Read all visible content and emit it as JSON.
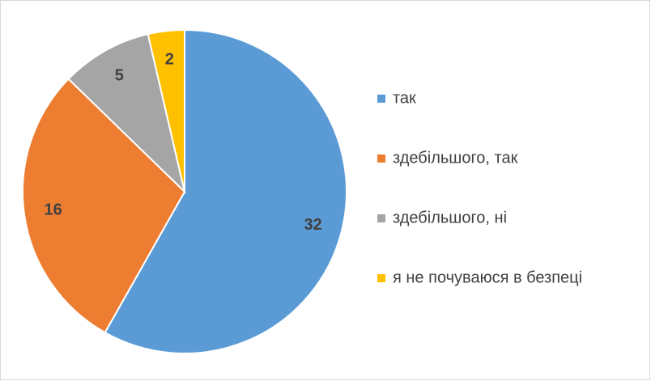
{
  "chart_data": {
    "type": "pie",
    "categories": [
      "так",
      "здебільшого, так",
      "здебільшого, ні",
      "я не почуваюся в безпеці"
    ],
    "values": [
      32,
      16,
      5,
      2
    ],
    "colors": [
      "#5b9bd5",
      "#ed7d31",
      "#a5a5a5",
      "#ffc000"
    ],
    "legend": "right"
  }
}
